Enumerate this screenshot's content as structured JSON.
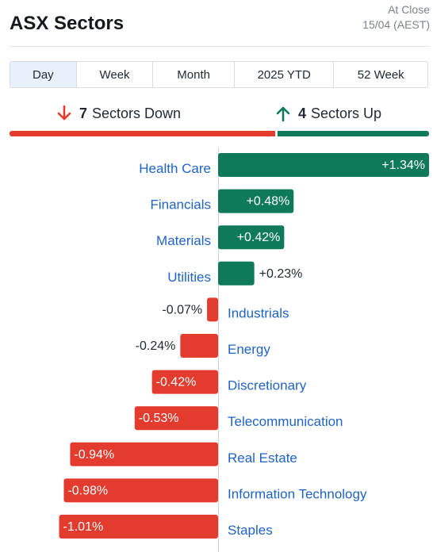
{
  "header": {
    "title": "ASX Sectors",
    "asof_line1": "At Close",
    "asof_line2": "15/04 (AEST)"
  },
  "tabs": [
    {
      "label": "Day",
      "active": true
    },
    {
      "label": "Week",
      "active": false
    },
    {
      "label": "Month",
      "active": false
    },
    {
      "label": "2025 YTD",
      "active": false
    },
    {
      "label": "52 Week",
      "active": false
    }
  ],
  "summary": {
    "down_count": "7",
    "down_text": "Sectors Down",
    "up_count": "4",
    "up_text": "Sectors Up"
  },
  "colors": {
    "up": "#0f7a5a",
    "down": "#e33c2e",
    "link": "#1f63c4"
  },
  "chart_data": {
    "type": "bar",
    "orientation": "horizontal",
    "categories": [
      "Health Care",
      "Financials",
      "Materials",
      "Utilities",
      "Industrials",
      "Energy",
      "Discretionary",
      "Telecommunication",
      "Real Estate",
      "Information Technology",
      "Staples"
    ],
    "values": [
      1.34,
      0.48,
      0.42,
      0.23,
      -0.07,
      -0.24,
      -0.42,
      -0.53,
      -0.94,
      -0.98,
      -1.01
    ],
    "value_labels": [
      "+1.34%",
      "+0.48%",
      "+0.42%",
      "+0.23%",
      "-0.07%",
      "-0.24%",
      "-0.42%",
      "-0.53%",
      "-0.94%",
      "-0.98%",
      "-1.01%"
    ],
    "unit": "%"
  }
}
